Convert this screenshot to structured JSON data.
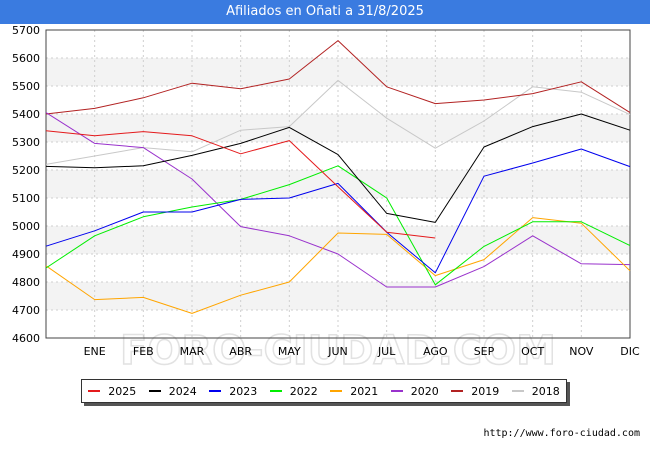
{
  "chart_data": {
    "type": "line",
    "title": "Afiliados en Oñati a 31/8/2025",
    "watermark": "FORO-CIUDAD.COM",
    "source_url": "http://www.foro-ciudad.com",
    "categories": [
      "",
      "ENE",
      "FEB",
      "MAR",
      "ABR",
      "MAY",
      "JUN",
      "JUL",
      "AGO",
      "SEP",
      "OCT",
      "NOV",
      "DIC"
    ],
    "ylim": [
      4600,
      5700
    ],
    "yticks": [
      4600,
      4700,
      4800,
      4900,
      5000,
      5100,
      5200,
      5300,
      5400,
      5500,
      5600,
      5700
    ],
    "grid": "horizontal-bands",
    "legend_position": "bottom",
    "series": [
      {
        "name": "2025",
        "color": "#e41a1c",
        "values": [
          5340,
          5322,
          5337,
          5322,
          5258,
          5305,
          5140,
          4978,
          4957,
          null,
          null,
          null,
          null
        ]
      },
      {
        "name": "2024",
        "color": "#000000",
        "values": [
          5213,
          5208,
          5215,
          5252,
          5295,
          5352,
          5255,
          5045,
          5013,
          5282,
          5355,
          5400,
          5342
        ]
      },
      {
        "name": "2023",
        "color": "#0000ee",
        "values": [
          4928,
          4983,
          5050,
          5050,
          5095,
          5100,
          5152,
          4978,
          4833,
          5178,
          5225,
          5275,
          5212
        ]
      },
      {
        "name": "2022",
        "color": "#00ee00",
        "values": [
          4850,
          4965,
          5033,
          5068,
          5095,
          5148,
          5215,
          5100,
          4790,
          4927,
          5015,
          5015,
          4930
        ]
      },
      {
        "name": "2021",
        "color": "#ffa500",
        "values": [
          4858,
          4737,
          4745,
          4688,
          4753,
          4800,
          4975,
          4970,
          4823,
          4880,
          5030,
          5010,
          4840
        ]
      },
      {
        "name": "2020",
        "color": "#9932cc",
        "values": [
          5405,
          5295,
          5280,
          5168,
          4998,
          4965,
          4900,
          4782,
          4782,
          4855,
          4965,
          4865,
          4862
        ]
      },
      {
        "name": "2019",
        "color": "#b22222",
        "values": [
          5400,
          5420,
          5458,
          5510,
          5490,
          5525,
          5662,
          5497,
          5437,
          5450,
          5473,
          5515,
          5405
        ]
      },
      {
        "name": "2018",
        "color": "#c8c8c8",
        "values": [
          5220,
          5250,
          5280,
          5265,
          5342,
          5355,
          5520,
          5385,
          5278,
          5375,
          5497,
          5478,
          5398
        ]
      }
    ]
  }
}
